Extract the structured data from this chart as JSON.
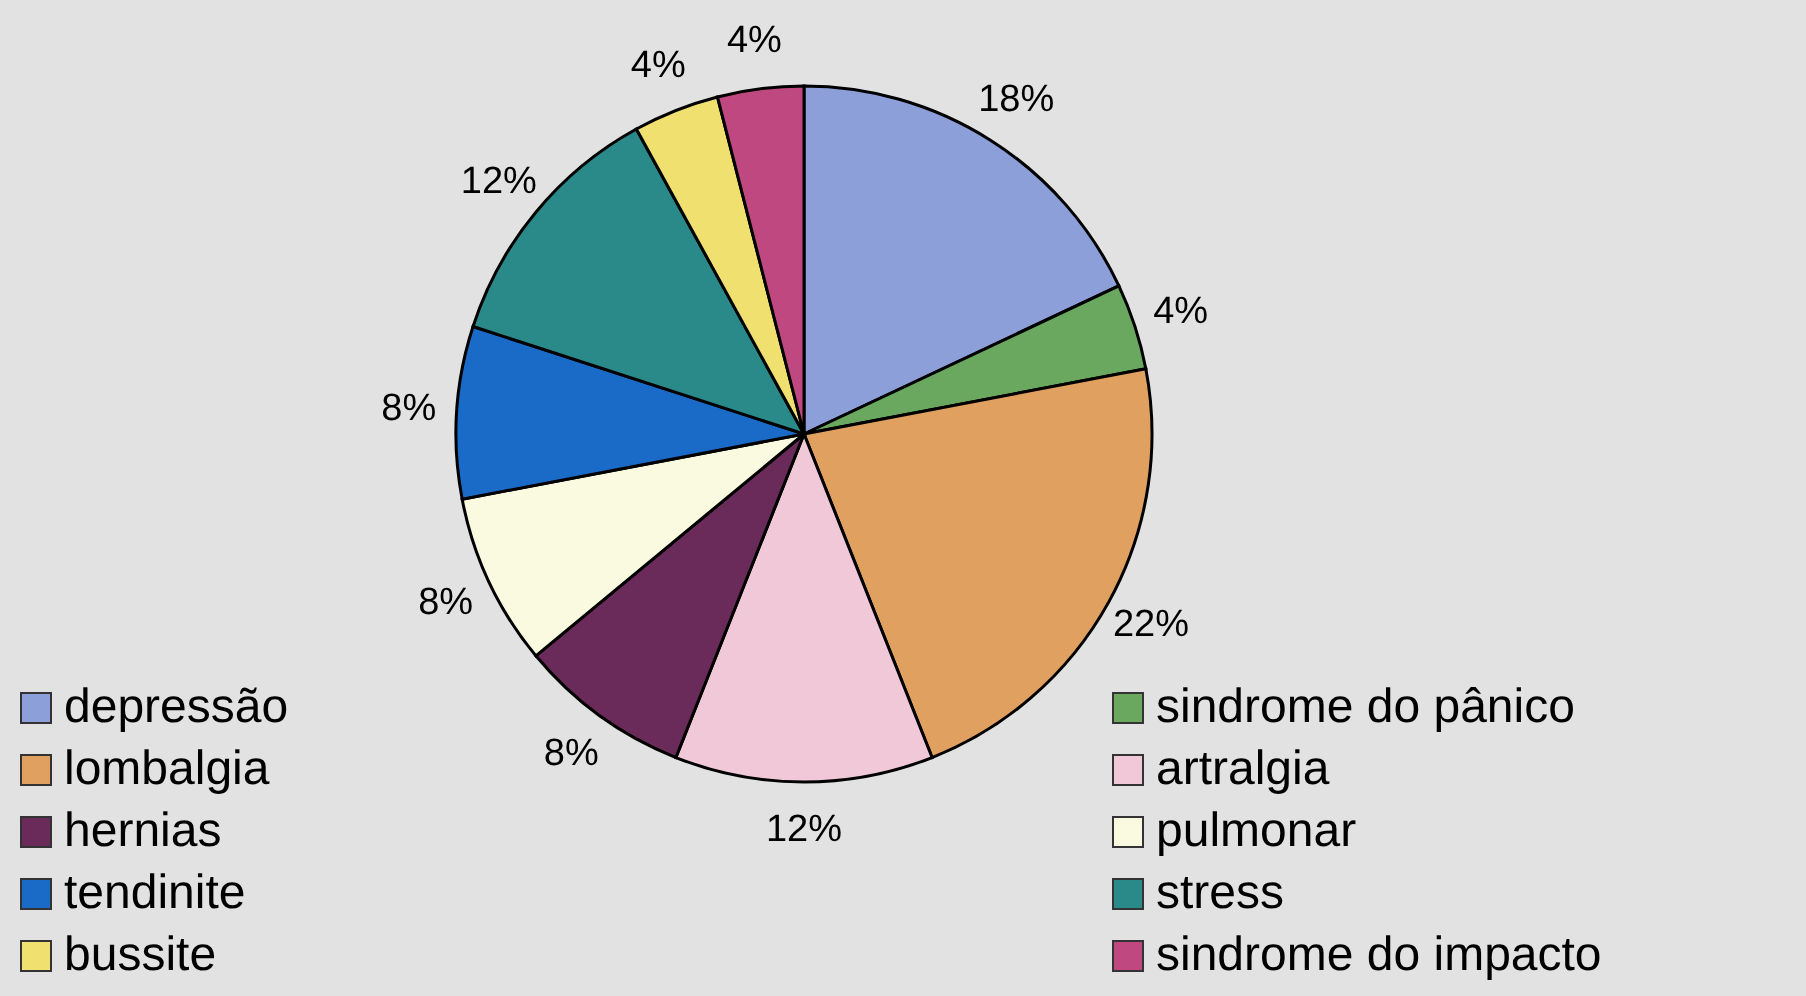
{
  "chart_data": {
    "type": "pie",
    "categories": [
      "depressão",
      "sindrome do pânico",
      "lombalgia",
      "artralgia",
      "hernias",
      "pulmonar",
      "tendinite",
      "stress",
      "bussite",
      "sindrome do impacto"
    ],
    "values": [
      18,
      4,
      22,
      12,
      8,
      8,
      8,
      12,
      4,
      4
    ],
    "value_labels": [
      "18%",
      "4%",
      "22%",
      "12%",
      "8%",
      "8%",
      "8%",
      "12%",
      "4%",
      "4%"
    ],
    "colors": [
      "#8c9fd8",
      "#6aa860",
      "#e0a060",
      "#f0c8d8",
      "#6a2a5a",
      "#fafae0",
      "#1a6ac8",
      "#2a8a8a",
      "#f0e070",
      "#c04880"
    ],
    "legend": "bottom"
  }
}
